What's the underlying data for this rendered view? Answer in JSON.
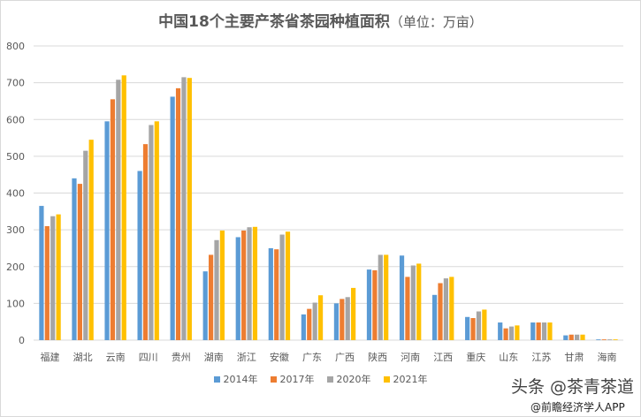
{
  "chart_data": {
    "type": "bar",
    "title": "中国18个主要产茶省茶园种植面积",
    "unit_label": "（单位：万亩）",
    "categories": [
      "福建",
      "湖北",
      "云南",
      "四川",
      "贵州",
      "湖南",
      "浙江",
      "安徽",
      "广东",
      "广西",
      "陕西",
      "河南",
      "江西",
      "重庆",
      "山东",
      "江苏",
      "甘肃",
      "海南"
    ],
    "series": [
      {
        "name": "2014年",
        "color": "#5b9bd5",
        "values": [
          365,
          440,
          595,
          460,
          662,
          187,
          280,
          250,
          70,
          100,
          192,
          230,
          123,
          63,
          48,
          48,
          13,
          2
        ]
      },
      {
        "name": "2017年",
        "color": "#ed7d31",
        "values": [
          310,
          425,
          655,
          533,
          685,
          232,
          298,
          247,
          85,
          112,
          190,
          172,
          155,
          60,
          32,
          48,
          15,
          2
        ]
      },
      {
        "name": "2020年",
        "color": "#a5a5a5",
        "values": [
          337,
          515,
          708,
          585,
          715,
          272,
          307,
          287,
          102,
          117,
          232,
          203,
          168,
          78,
          37,
          48,
          15,
          2
        ]
      },
      {
        "name": "2021年",
        "color": "#ffc000",
        "values": [
          342,
          545,
          720,
          595,
          713,
          298,
          308,
          295,
          122,
          142,
          232,
          208,
          172,
          83,
          40,
          48,
          15,
          2
        ]
      }
    ],
    "ylim": [
      0,
      800
    ],
    "yticks": [
      0,
      100,
      200,
      300,
      400,
      500,
      600,
      700,
      800
    ],
    "grid": true,
    "legend": "bottom"
  },
  "watermark": {
    "line1": "头条 @茶青茶道",
    "line2": "@前瞻经济学人APP"
  }
}
